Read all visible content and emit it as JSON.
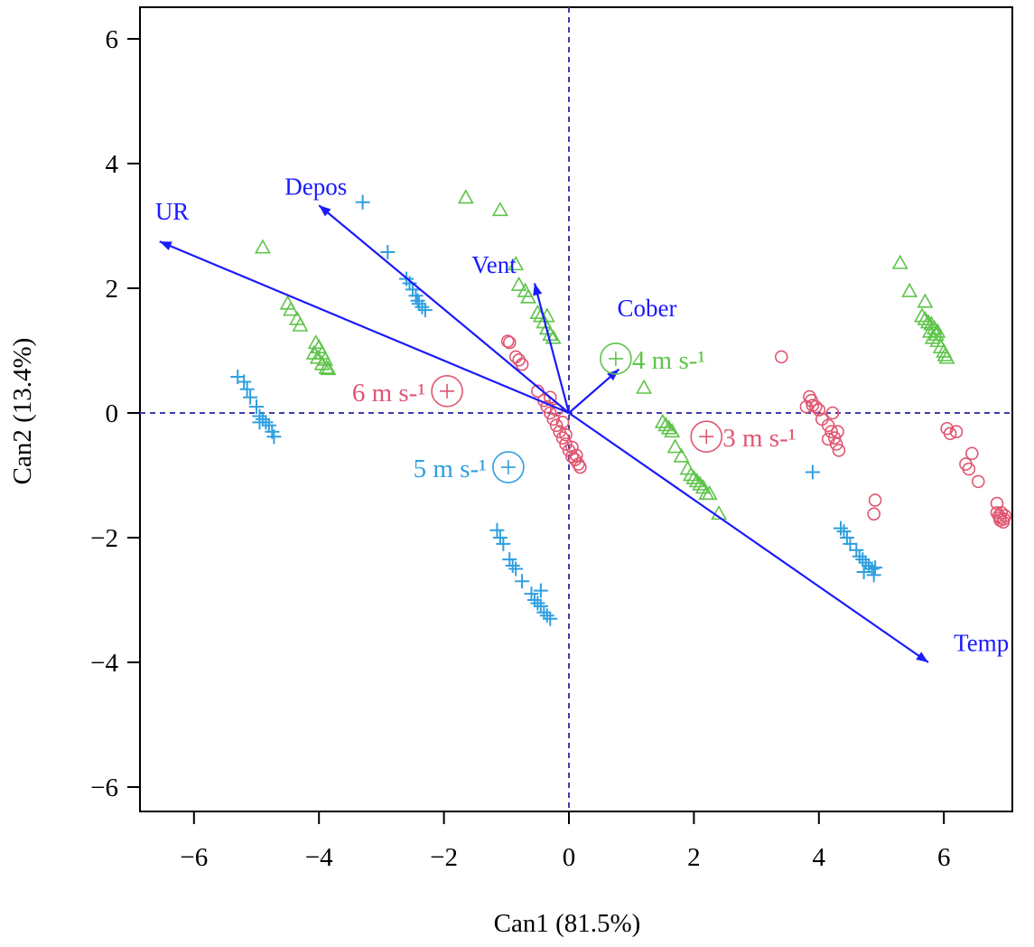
{
  "chart_data": {
    "type": "scatter",
    "subtype": "canonical-discriminant-biplot",
    "xlabel": "Can1 (81.5%)",
    "ylabel": "Can2 (13.4%)",
    "xlim": [
      -6.8,
      7.1
    ],
    "ylim": [
      -6.4,
      6.6
    ],
    "xticks": [
      -6,
      -4,
      -2,
      0,
      2,
      4,
      6
    ],
    "yticks": [
      -6,
      -4,
      -2,
      0,
      2,
      4,
      6
    ],
    "grid": false,
    "reference_lines": {
      "x": 0,
      "y": 0,
      "style": "dashed",
      "color": "#3d3db0"
    },
    "colors": {
      "arrows": "#1a1aff",
      "axes": "#000000"
    },
    "series": [
      {
        "group": "3 m s-1",
        "marker": "circle",
        "color": "#e05570",
        "centroid": {
          "x": 2.2,
          "y": -0.38,
          "label": "3 m s-¹"
        },
        "points": [
          [
            -0.5,
            0.35
          ],
          [
            -0.4,
            0.2
          ],
          [
            -0.35,
            0.1
          ],
          [
            -0.3,
            0.0
          ],
          [
            -0.25,
            -0.1
          ],
          [
            -0.2,
            -0.2
          ],
          [
            -0.15,
            -0.3
          ],
          [
            -0.1,
            -0.4
          ],
          [
            -0.05,
            -0.5
          ],
          [
            0.0,
            -0.6
          ],
          [
            0.05,
            -0.7
          ],
          [
            0.1,
            -0.75
          ],
          [
            0.15,
            -0.82
          ],
          [
            0.18,
            -0.87
          ],
          [
            -0.3,
            0.25
          ],
          [
            -0.2,
            0.05
          ],
          [
            -0.1,
            -0.15
          ],
          [
            -0.05,
            -0.35
          ],
          [
            0.05,
            -0.55
          ],
          [
            0.12,
            -0.68
          ],
          [
            -0.98,
            1.15
          ],
          [
            -0.95,
            1.13
          ],
          [
            -0.85,
            0.9
          ],
          [
            -0.8,
            0.85
          ],
          [
            -0.75,
            0.78
          ],
          [
            3.4,
            0.9
          ],
          [
            3.85,
            0.26
          ],
          [
            3.88,
            0.2
          ],
          [
            3.9,
            0.12
          ],
          [
            3.95,
            0.1
          ],
          [
            3.8,
            0.1
          ],
          [
            4.0,
            0.05
          ],
          [
            4.05,
            -0.1
          ],
          [
            4.15,
            -0.2
          ],
          [
            4.2,
            -0.3
          ],
          [
            4.22,
            0.0
          ],
          [
            4.25,
            -0.4
          ],
          [
            4.28,
            -0.5
          ],
          [
            4.3,
            -0.3
          ],
          [
            4.15,
            -0.42
          ],
          [
            4.32,
            -0.6
          ],
          [
            4.9,
            -1.4
          ],
          [
            4.88,
            -1.62
          ],
          [
            6.05,
            -0.25
          ],
          [
            6.1,
            -0.33
          ],
          [
            6.2,
            -0.3
          ],
          [
            6.35,
            -0.82
          ],
          [
            6.4,
            -0.9
          ],
          [
            6.45,
            -0.65
          ],
          [
            6.55,
            -1.1
          ],
          [
            6.85,
            -1.45
          ],
          [
            6.85,
            -1.6
          ],
          [
            6.88,
            -1.65
          ],
          [
            6.9,
            -1.72
          ],
          [
            6.92,
            -1.6
          ],
          [
            6.95,
            -1.75
          ],
          [
            6.98,
            -1.65
          ],
          [
            6.96,
            -1.7
          ],
          [
            6.9,
            -1.68
          ]
        ]
      },
      {
        "group": "4 m s-1",
        "marker": "triangle",
        "color": "#5fc44a",
        "centroid": {
          "x": 0.75,
          "y": 0.87,
          "label": "4 m s-¹"
        },
        "points": [
          [
            -1.65,
            3.45
          ],
          [
            -1.1,
            3.25
          ],
          [
            -4.9,
            2.65
          ],
          [
            -4.5,
            1.75
          ],
          [
            -4.45,
            1.65
          ],
          [
            -4.35,
            1.5
          ],
          [
            -4.3,
            1.4
          ],
          [
            -4.05,
            1.12
          ],
          [
            -4.0,
            1.05
          ],
          [
            -4.08,
            0.95
          ],
          [
            -3.95,
            0.95
          ],
          [
            -4.02,
            0.88
          ],
          [
            -3.9,
            0.85
          ],
          [
            -3.95,
            0.78
          ],
          [
            -3.88,
            0.72
          ],
          [
            -3.85,
            0.7
          ],
          [
            -0.85,
            2.38
          ],
          [
            -0.8,
            2.05
          ],
          [
            -0.7,
            1.95
          ],
          [
            -0.65,
            1.85
          ],
          [
            -0.5,
            1.6
          ],
          [
            -0.45,
            1.55
          ],
          [
            -0.35,
            1.55
          ],
          [
            -0.4,
            1.45
          ],
          [
            -0.35,
            1.35
          ],
          [
            -0.3,
            1.25
          ],
          [
            -0.25,
            1.2
          ],
          [
            1.2,
            0.4
          ],
          [
            1.5,
            -0.15
          ],
          [
            1.55,
            -0.2
          ],
          [
            1.6,
            -0.25
          ],
          [
            1.65,
            -0.3
          ],
          [
            1.7,
            -0.55
          ],
          [
            1.8,
            -0.7
          ],
          [
            1.9,
            -0.9
          ],
          [
            1.95,
            -1.0
          ],
          [
            2.0,
            -1.05
          ],
          [
            2.05,
            -1.1
          ],
          [
            2.1,
            -1.15
          ],
          [
            2.15,
            -1.2
          ],
          [
            2.2,
            -1.3
          ],
          [
            2.25,
            -1.3
          ],
          [
            2.4,
            -1.62
          ],
          [
            5.3,
            2.4
          ],
          [
            5.45,
            1.95
          ],
          [
            5.7,
            1.78
          ],
          [
            5.65,
            1.55
          ],
          [
            5.7,
            1.5
          ],
          [
            5.75,
            1.45
          ],
          [
            5.8,
            1.42
          ],
          [
            5.85,
            1.35
          ],
          [
            5.88,
            1.25
          ],
          [
            5.9,
            1.15
          ],
          [
            5.95,
            1.05
          ],
          [
            6.0,
            0.98
          ],
          [
            6.02,
            0.92
          ],
          [
            6.05,
            0.88
          ],
          [
            5.78,
            1.3
          ],
          [
            5.82,
            1.2
          ],
          [
            5.9,
            1.3
          ]
        ]
      },
      {
        "group": "5 m s-1",
        "marker": "plus",
        "color": "#2f9fe0",
        "centroid": {
          "x": -0.97,
          "y": -0.87,
          "label": "5 m s-¹"
        },
        "points": [
          [
            -3.3,
            3.38
          ],
          [
            -2.9,
            2.58
          ],
          [
            -2.6,
            2.15
          ],
          [
            -2.55,
            2.08
          ],
          [
            -2.5,
            1.98
          ],
          [
            -2.45,
            1.88
          ],
          [
            -2.42,
            1.8
          ],
          [
            -2.4,
            1.75
          ],
          [
            -2.35,
            1.7
          ],
          [
            -2.3,
            1.65
          ],
          [
            -5.3,
            0.58
          ],
          [
            -5.2,
            0.5
          ],
          [
            -5.15,
            0.38
          ],
          [
            -5.1,
            0.25
          ],
          [
            -5.0,
            0.1
          ],
          [
            -4.95,
            -0.05
          ],
          [
            -4.9,
            -0.1
          ],
          [
            -4.85,
            -0.15
          ],
          [
            -4.8,
            -0.2
          ],
          [
            -4.75,
            -0.3
          ],
          [
            -4.72,
            -0.38
          ],
          [
            -4.95,
            -0.15
          ],
          [
            -1.15,
            -1.88
          ],
          [
            -1.1,
            -2.0
          ],
          [
            -1.05,
            -2.1
          ],
          [
            -0.95,
            -2.35
          ],
          [
            -0.9,
            -2.45
          ],
          [
            -0.85,
            -2.5
          ],
          [
            -0.75,
            -2.7
          ],
          [
            -0.6,
            -2.9
          ],
          [
            -0.55,
            -3.0
          ],
          [
            -0.5,
            -3.05
          ],
          [
            -0.45,
            -3.1
          ],
          [
            -0.4,
            -3.2
          ],
          [
            -0.35,
            -3.25
          ],
          [
            -0.3,
            -3.3
          ],
          [
            -0.45,
            -2.85
          ],
          [
            3.9,
            -0.95
          ],
          [
            4.35,
            -1.85
          ],
          [
            4.4,
            -1.9
          ],
          [
            4.45,
            -2.0
          ],
          [
            4.5,
            -2.1
          ],
          [
            4.6,
            -2.2
          ],
          [
            4.65,
            -2.3
          ],
          [
            4.7,
            -2.35
          ],
          [
            4.75,
            -2.4
          ],
          [
            4.8,
            -2.45
          ],
          [
            4.85,
            -2.5
          ],
          [
            4.88,
            -2.6
          ],
          [
            4.9,
            -2.48
          ],
          [
            4.72,
            -2.55
          ]
        ]
      },
      {
        "group": "6 m s-1",
        "marker": "circle",
        "color": "#e05570",
        "centroid": {
          "x": -1.95,
          "y": 0.35,
          "label": "6 m s-¹"
        },
        "points": []
      }
    ],
    "vectors": [
      {
        "name": "UR",
        "x": -6.55,
        "y": 2.75,
        "label_x": -6.35,
        "label_y": 3.1
      },
      {
        "name": "Depos",
        "x": -4.0,
        "y": 3.33,
        "label_x": -4.05,
        "label_y": 3.5
      },
      {
        "name": "Vent",
        "x": -0.55,
        "y": 2.08,
        "label_x": -1.2,
        "label_y": 2.25
      },
      {
        "name": "Cober",
        "x": 0.8,
        "y": 0.7,
        "label_x": 1.25,
        "label_y": 1.55
      },
      {
        "name": "Temp",
        "x": 5.75,
        "y": -4.0,
        "label_x": 6.6,
        "label_y": -3.82
      }
    ]
  }
}
